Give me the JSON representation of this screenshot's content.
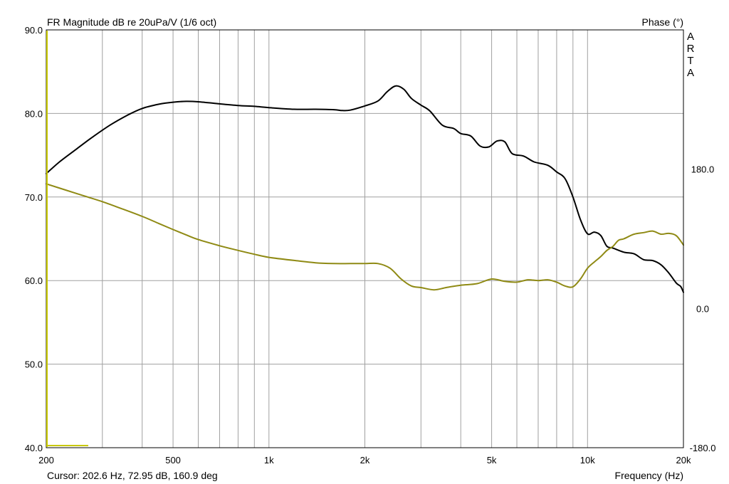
{
  "title_left": "FR Magnitude dB re 20uPa/V (1/6 oct)",
  "title_right": "Phase (°)",
  "watermark": [
    "A",
    "R",
    "T",
    "A"
  ],
  "cursor_readout": "Cursor: 202.6 Hz, 72.95 dB, 160.9 deg",
  "colors": {
    "magnitude": "#000000",
    "phase": "#8f8a14",
    "grid": "#a0a0a0",
    "frame": "#000000"
  },
  "chart_data": {
    "type": "line",
    "xlabel": "Frequency (Hz)",
    "ylabel": "FR Magnitude dB re 20uPa/V (1/6 oct)",
    "y2label": "Phase (°)",
    "x_scale": "log",
    "xlim": [
      200,
      20000
    ],
    "ylim": [
      40,
      90
    ],
    "y2lim": [
      -180,
      360
    ],
    "grid": true,
    "x_ticks": [
      {
        "value": 200,
        "label": "200"
      },
      {
        "value": 500,
        "label": "500"
      },
      {
        "value": 1000,
        "label": "1k"
      },
      {
        "value": 2000,
        "label": "2k"
      },
      {
        "value": 5000,
        "label": "5k"
      },
      {
        "value": 10000,
        "label": "10k"
      },
      {
        "value": 20000,
        "label": "20k"
      }
    ],
    "y_ticks": [
      {
        "value": 90,
        "label": "90.0"
      },
      {
        "value": 80,
        "label": "80.0"
      },
      {
        "value": 70,
        "label": "70.0"
      },
      {
        "value": 60,
        "label": "60.0"
      },
      {
        "value": 50,
        "label": "50.0"
      },
      {
        "value": 40,
        "label": "40.0"
      }
    ],
    "y2_ticks": [
      {
        "value": 180,
        "label": "180.0"
      },
      {
        "value": 0,
        "label": "0.0"
      },
      {
        "value": -180,
        "label": "-180.0"
      }
    ],
    "series": [
      {
        "axis": "left",
        "points": [
          [
            200,
            72.8
          ],
          [
            220,
            74.2
          ],
          [
            250,
            75.8
          ],
          [
            280,
            77.2
          ],
          [
            320,
            78.7
          ],
          [
            360,
            79.8
          ],
          [
            400,
            80.6
          ],
          [
            450,
            81.1
          ],
          [
            500,
            81.35
          ],
          [
            550,
            81.45
          ],
          [
            600,
            81.4
          ],
          [
            700,
            81.15
          ],
          [
            800,
            80.95
          ],
          [
            900,
            80.85
          ],
          [
            1000,
            80.7
          ],
          [
            1200,
            80.5
          ],
          [
            1400,
            80.5
          ],
          [
            1600,
            80.45
          ],
          [
            1700,
            80.35
          ],
          [
            1800,
            80.4
          ],
          [
            2000,
            80.9
          ],
          [
            2200,
            81.5
          ],
          [
            2350,
            82.6
          ],
          [
            2500,
            83.3
          ],
          [
            2650,
            82.9
          ],
          [
            2800,
            81.8
          ],
          [
            3000,
            81.0
          ],
          [
            3200,
            80.3
          ],
          [
            3500,
            78.6
          ],
          [
            3800,
            78.2
          ],
          [
            4000,
            77.6
          ],
          [
            4300,
            77.3
          ],
          [
            4600,
            76.1
          ],
          [
            4900,
            76.0
          ],
          [
            5200,
            76.7
          ],
          [
            5500,
            76.6
          ],
          [
            5800,
            75.2
          ],
          [
            6300,
            74.9
          ],
          [
            6800,
            74.2
          ],
          [
            7500,
            73.8
          ],
          [
            8000,
            73.0
          ],
          [
            8500,
            72.2
          ],
          [
            9000,
            70.0
          ],
          [
            9500,
            67.3
          ],
          [
            10000,
            65.6
          ],
          [
            10500,
            65.8
          ],
          [
            11000,
            65.4
          ],
          [
            11500,
            64.1
          ],
          [
            12000,
            63.9
          ],
          [
            13000,
            63.4
          ],
          [
            14000,
            63.2
          ],
          [
            15000,
            62.5
          ],
          [
            16000,
            62.4
          ],
          [
            17000,
            61.9
          ],
          [
            18000,
            60.9
          ],
          [
            19000,
            59.7
          ],
          [
            19600,
            59.3
          ],
          [
            20000,
            58.6
          ]
        ]
      },
      {
        "axis": "right",
        "points": [
          [
            200,
            161
          ],
          [
            230,
            153
          ],
          [
            260,
            146
          ],
          [
            300,
            138
          ],
          [
            350,
            128
          ],
          [
            400,
            119
          ],
          [
            450,
            110
          ],
          [
            500,
            102
          ],
          [
            550,
            95
          ],
          [
            600,
            89
          ],
          [
            700,
            81
          ],
          [
            800,
            75
          ],
          [
            900,
            70
          ],
          [
            1000,
            66
          ],
          [
            1200,
            62
          ],
          [
            1400,
            59
          ],
          [
            1600,
            58
          ],
          [
            1800,
            58
          ],
          [
            2000,
            58
          ],
          [
            2200,
            58
          ],
          [
            2400,
            52
          ],
          [
            2600,
            38
          ],
          [
            2800,
            29
          ],
          [
            3000,
            27
          ],
          [
            3300,
            24
          ],
          [
            3600,
            27
          ],
          [
            4000,
            30
          ],
          [
            4500,
            32
          ],
          [
            5000,
            38
          ],
          [
            5500,
            35
          ],
          [
            6000,
            34
          ],
          [
            6500,
            37
          ],
          [
            7000,
            36
          ],
          [
            7500,
            37
          ],
          [
            8000,
            34
          ],
          [
            8500,
            29
          ],
          [
            9000,
            28
          ],
          [
            9500,
            38
          ],
          [
            10000,
            52
          ],
          [
            10500,
            60
          ],
          [
            11000,
            67
          ],
          [
            11500,
            75
          ],
          [
            12000,
            80
          ],
          [
            12500,
            88
          ],
          [
            13000,
            90
          ],
          [
            14000,
            96
          ],
          [
            15000,
            98
          ],
          [
            16000,
            100
          ],
          [
            17000,
            96
          ],
          [
            18000,
            97
          ],
          [
            19000,
            94
          ],
          [
            20000,
            82
          ]
        ]
      }
    ]
  }
}
